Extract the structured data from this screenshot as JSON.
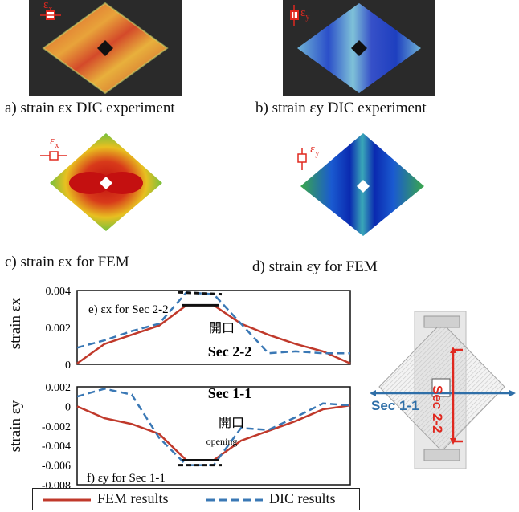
{
  "captions": {
    "a": "a) strain εx DIC experiment",
    "b": "b) strain εy DIC experiment",
    "c": "c) strain εx for FEM",
    "d": "d) strain εy for FEM"
  },
  "symbols": {
    "ex": "ε",
    "ex_sub": "x",
    "ey": "ε",
    "ey_sub": "y"
  },
  "colors": {
    "fem": "#c0392b",
    "dic": "#3a78b5",
    "dashed_black": "#111111",
    "accent_red": "#e0281f",
    "section_blue": "#2f6fa8"
  },
  "chart_data": [
    {
      "type": "line",
      "title": "Sec 2-2",
      "annotation": "e) εx for Sec 2-2",
      "note": "開口",
      "ylabel": "strain εx",
      "yticks": [
        "0.004",
        "0.002",
        "0"
      ],
      "ylim": [
        0,
        0.004
      ],
      "series": [
        {
          "name": "FEM results",
          "x": [
            0,
            1,
            2,
            3,
            4,
            5,
            6,
            7,
            8,
            9,
            10
          ],
          "values": [
            5e-05,
            0.0011,
            0.0016,
            0.0021,
            0.0032,
            0.0032,
            0.0022,
            0.0016,
            0.0011,
            0.0007,
            5e-05
          ]
        },
        {
          "name": "DIC results",
          "x": [
            0,
            1,
            2,
            3,
            4,
            5,
            6,
            7,
            8,
            9,
            10
          ],
          "values": [
            0.0009,
            0.0013,
            0.0018,
            0.0022,
            0.0039,
            0.0038,
            0.0022,
            0.0006,
            0.0007,
            0.0006,
            0.0006
          ]
        }
      ]
    },
    {
      "type": "line",
      "title": "Sec 1-1",
      "annotation": "f) εy for Sec 1-1",
      "note": "開口",
      "note2": "opening",
      "ylabel": "strain εy",
      "yticks": [
        "0.002",
        "0",
        "-0.002",
        "-0.004",
        "-0.006",
        "-0.008"
      ],
      "ylim": [
        -0.008,
        0.002
      ],
      "series": [
        {
          "name": "FEM results",
          "x": [
            0,
            1,
            2,
            3,
            4,
            5,
            6,
            7,
            8,
            9,
            10
          ],
          "values": [
            0.0,
            -0.0012,
            -0.0018,
            -0.0028,
            -0.0055,
            -0.0055,
            -0.0035,
            -0.0025,
            -0.0015,
            -0.0003,
            0.0001
          ]
        },
        {
          "name": "DIC results",
          "x": [
            0,
            1,
            2,
            3,
            4,
            5,
            6,
            7,
            8,
            9,
            10
          ],
          "values": [
            0.001,
            0.0018,
            0.0012,
            -0.0032,
            -0.006,
            -0.006,
            -0.0022,
            -0.0024,
            -0.0011,
            0.0003,
            0.0001
          ]
        }
      ]
    }
  ],
  "legend": {
    "fem": "FEM results",
    "dic": "DIC results"
  },
  "diagram": {
    "sec11": "Sec 1-1",
    "sec22": "Sec 2-2"
  }
}
